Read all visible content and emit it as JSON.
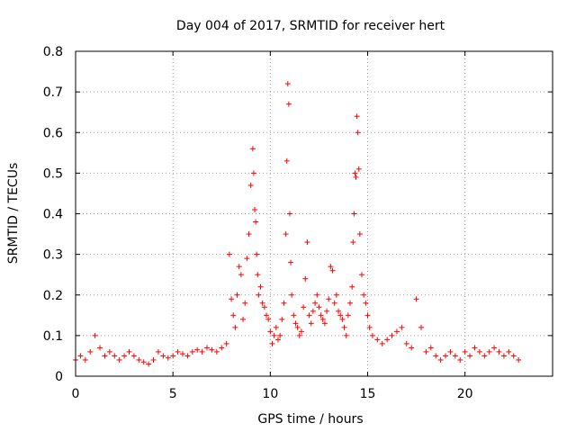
{
  "chart_data": {
    "type": "scatter",
    "title": "Day 004 of 2017, SRMTID for receiver hert",
    "xlabel": "GPS time / hours",
    "ylabel": "SRMTID / TECUs",
    "xlim": [
      0,
      24.5
    ],
    "ylim": [
      0,
      0.8
    ],
    "x_ticks": [
      0,
      5,
      10,
      15,
      20
    ],
    "y_ticks": [
      0,
      0.1,
      0.2,
      0.3,
      0.4,
      0.5,
      0.6,
      0.7,
      0.8
    ],
    "x_tick_labels": [
      "0",
      "5",
      "10",
      "15",
      "20"
    ],
    "y_tick_labels": [
      "0",
      "0.1",
      "0.2",
      "0.3",
      "0.4",
      "0.5",
      "0.6",
      "0.7",
      "0.8"
    ],
    "grid": true,
    "marker": "+",
    "color": "#ff0000",
    "series": [
      {
        "name": "SRMTID",
        "x": [
          0.0,
          0.25,
          0.5,
          0.75,
          1.0,
          1.25,
          1.5,
          1.75,
          2.0,
          2.25,
          2.5,
          2.75,
          3.0,
          3.25,
          3.5,
          3.75,
          4.0,
          4.25,
          4.5,
          4.75,
          5.0,
          5.25,
          5.5,
          5.75,
          6.0,
          6.25,
          6.5,
          6.75,
          7.0,
          7.25,
          7.5,
          7.75,
          7.9,
          8.0,
          8.1,
          8.2,
          8.3,
          8.4,
          8.5,
          8.6,
          8.7,
          8.8,
          8.9,
          9.0,
          9.1,
          9.15,
          9.2,
          9.25,
          9.3,
          9.35,
          9.4,
          9.5,
          9.6,
          9.7,
          9.8,
          9.9,
          10.0,
          10.1,
          10.2,
          10.3,
          10.4,
          10.5,
          10.6,
          10.7,
          10.8,
          10.85,
          10.9,
          10.95,
          11.0,
          11.05,
          11.1,
          11.2,
          11.3,
          11.4,
          11.5,
          11.6,
          11.7,
          11.8,
          11.9,
          12.0,
          12.1,
          12.2,
          12.3,
          12.4,
          12.5,
          12.6,
          12.7,
          12.8,
          12.9,
          13.0,
          13.1,
          13.2,
          13.3,
          13.4,
          13.5,
          13.6,
          13.7,
          13.8,
          13.9,
          14.0,
          14.1,
          14.2,
          14.25,
          14.3,
          14.35,
          14.4,
          14.45,
          14.5,
          14.55,
          14.6,
          14.7,
          14.8,
          14.9,
          15.0,
          15.1,
          15.25,
          15.5,
          15.75,
          16.0,
          16.25,
          16.5,
          16.75,
          17.0,
          17.25,
          17.5,
          17.75,
          18.0,
          18.25,
          18.5,
          18.75,
          19.0,
          19.25,
          19.5,
          19.75,
          20.0,
          20.25,
          20.5,
          20.75,
          21.0,
          21.25,
          21.5,
          21.75,
          22.0,
          22.25,
          22.5,
          22.75
        ],
        "y": [
          0.04,
          0.05,
          0.04,
          0.06,
          0.1,
          0.07,
          0.05,
          0.06,
          0.05,
          0.04,
          0.05,
          0.06,
          0.05,
          0.04,
          0.035,
          0.03,
          0.04,
          0.06,
          0.05,
          0.045,
          0.05,
          0.06,
          0.055,
          0.05,
          0.06,
          0.065,
          0.06,
          0.07,
          0.065,
          0.06,
          0.07,
          0.08,
          0.3,
          0.19,
          0.15,
          0.12,
          0.2,
          0.27,
          0.25,
          0.14,
          0.18,
          0.29,
          0.35,
          0.47,
          0.56,
          0.5,
          0.41,
          0.38,
          0.3,
          0.25,
          0.2,
          0.22,
          0.18,
          0.17,
          0.15,
          0.14,
          0.11,
          0.08,
          0.1,
          0.12,
          0.09,
          0.1,
          0.14,
          0.18,
          0.35,
          0.53,
          0.72,
          0.67,
          0.4,
          0.28,
          0.2,
          0.15,
          0.13,
          0.12,
          0.1,
          0.11,
          0.17,
          0.24,
          0.33,
          0.15,
          0.13,
          0.16,
          0.18,
          0.2,
          0.17,
          0.15,
          0.14,
          0.13,
          0.16,
          0.19,
          0.27,
          0.26,
          0.18,
          0.2,
          0.16,
          0.15,
          0.14,
          0.12,
          0.1,
          0.15,
          0.18,
          0.22,
          0.33,
          0.4,
          0.5,
          0.49,
          0.64,
          0.6,
          0.51,
          0.35,
          0.25,
          0.2,
          0.18,
          0.15,
          0.12,
          0.1,
          0.09,
          0.08,
          0.09,
          0.1,
          0.11,
          0.12,
          0.08,
          0.07,
          0.19,
          0.12,
          0.06,
          0.07,
          0.05,
          0.04,
          0.05,
          0.06,
          0.05,
          0.04,
          0.06,
          0.05,
          0.07,
          0.06,
          0.05,
          0.06,
          0.07,
          0.06,
          0.05,
          0.06,
          0.05,
          0.04
        ]
      }
    ]
  }
}
